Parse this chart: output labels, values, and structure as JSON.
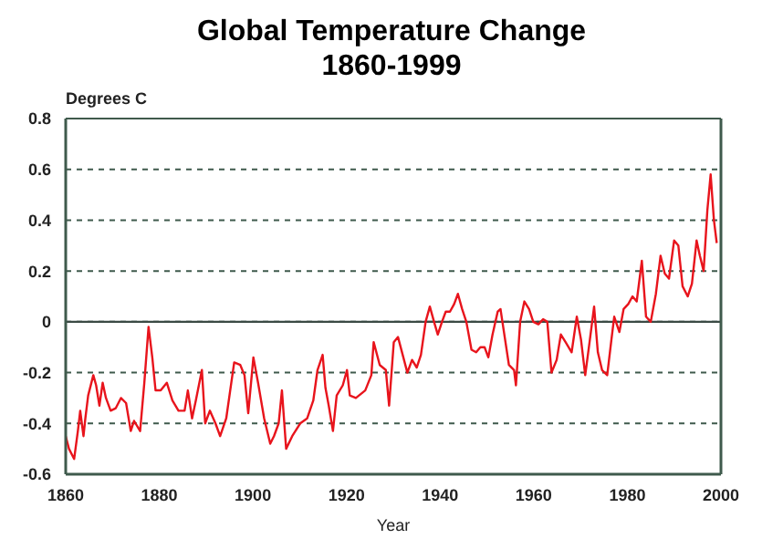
{
  "chart_data": {
    "type": "line",
    "title": "Global Temperature Change",
    "subtitle": "1860-1999",
    "ylabel": "Degrees C",
    "xlabel": "Year",
    "xlim": [
      1860,
      2000
    ],
    "xticks": [
      1860,
      1880,
      1900,
      1920,
      1940,
      1960,
      1980,
      2000
    ],
    "ylim": [
      -0.6,
      0.8
    ],
    "yticks": [
      -0.6,
      -0.4,
      -0.2,
      0,
      0.2,
      0.4,
      0.6,
      0.8
    ],
    "grid": "y",
    "marker": "none",
    "line_style": "solid",
    "ref_lines": [
      {
        "axis": "y",
        "value": 0,
        "color": "#3a4a44"
      }
    ],
    "series": [
      {
        "color": "#e8141c",
        "x": [
          1860.0,
          1860.7,
          1861.8,
          1862.6,
          1863.1,
          1863.8,
          1864.2,
          1864.8,
          1865.9,
          1866.5,
          1867.2,
          1867.9,
          1868.6,
          1869.6,
          1870.7,
          1871.8,
          1872.9,
          1873.9,
          1874.6,
          1875.9,
          1876.8,
          1877.7,
          1878.5,
          1879.2,
          1880.3,
          1881.6,
          1882.8,
          1884.1,
          1885.4,
          1886.1,
          1887,
          1887.8,
          1889.1,
          1889.8,
          1890.8,
          1892,
          1893,
          1894.3,
          1896,
          1897.3,
          1898.2,
          1899,
          1900.1,
          1901.1,
          1902.4,
          1903.7,
          1904.5,
          1905.5,
          1906.2,
          1907.1,
          1908.4,
          1910.1,
          1911.6,
          1912.9,
          1913.8,
          1914.9,
          1915.5,
          1916.2,
          1917.1,
          1917.9,
          1919.2,
          1920.1,
          1920.7,
          1922,
          1924,
          1925.3,
          1925.8,
          1927.1,
          1928.4,
          1929.1,
          1930.1,
          1931,
          1932,
          1933,
          1934,
          1935,
          1935.9,
          1936.9,
          1937.8,
          1938.7,
          1939.5,
          1940.4,
          1941.2,
          1942.1,
          1943,
          1943.8,
          1944.7,
          1945.6,
          1946.7,
          1947.7,
          1948.6,
          1949.5,
          1950.3,
          1951.2,
          1952.3,
          1952.9,
          1953.8,
          1954.7,
          1955.8,
          1956.2,
          1957.1,
          1958,
          1959,
          1959.9,
          1961,
          1962,
          1962.9,
          1963.8,
          1964.9,
          1965.8,
          1966.8,
          1968.1,
          1969.2,
          1970.1,
          1971,
          1972,
          1972.9,
          1973.7,
          1974.6,
          1975.7,
          1976.6,
          1977.2,
          1978.3,
          1979.2,
          1980.2,
          1981.1,
          1982,
          1983.1,
          1984,
          1985,
          1986.1,
          1987.1,
          1988,
          1988.9,
          1990,
          1990.9,
          1991.8,
          1992.9,
          1993.8,
          1994.8,
          1995.5,
          1996.3,
          1997.1,
          1997.8,
          1998.5,
          1999.1
        ],
        "values": [
          -0.45,
          -0.5,
          -0.54,
          -0.43,
          -0.35,
          -0.45,
          -0.38,
          -0.29,
          -0.21,
          -0.25,
          -0.33,
          -0.24,
          -0.3,
          -0.35,
          -0.34,
          -0.3,
          -0.32,
          -0.43,
          -0.39,
          -0.43,
          -0.24,
          -0.02,
          -0.14,
          -0.27,
          -0.27,
          -0.24,
          -0.31,
          -0.35,
          -0.35,
          -0.27,
          -0.38,
          -0.31,
          -0.19,
          -0.4,
          -0.35,
          -0.4,
          -0.45,
          -0.38,
          -0.16,
          -0.17,
          -0.21,
          -0.36,
          -0.14,
          -0.24,
          -0.38,
          -0.48,
          -0.45,
          -0.4,
          -0.27,
          -0.5,
          -0.45,
          -0.4,
          -0.38,
          -0.31,
          -0.19,
          -0.13,
          -0.26,
          -0.33,
          -0.43,
          -0.29,
          -0.25,
          -0.19,
          -0.29,
          -0.3,
          -0.27,
          -0.21,
          -0.08,
          -0.17,
          -0.19,
          -0.33,
          -0.08,
          -0.06,
          -0.13,
          -0.2,
          -0.15,
          -0.18,
          -0.13,
          0,
          0.06,
          0,
          -0.05,
          0,
          0.04,
          0.04,
          0.07,
          0.11,
          0.05,
          0,
          -0.11,
          -0.12,
          -0.1,
          -0.1,
          -0.14,
          -0.05,
          0.04,
          0.05,
          -0.06,
          -0.17,
          -0.19,
          -0.25,
          0,
          0.08,
          0.05,
          0,
          -0.01,
          0.01,
          0,
          -0.2,
          -0.15,
          -0.05,
          -0.08,
          -0.12,
          0.02,
          -0.07,
          -0.21,
          -0.07,
          0.06,
          -0.12,
          -0.19,
          -0.21,
          -0.07,
          0.02,
          -0.04,
          0.05,
          0.07,
          0.1,
          0.08,
          0.24,
          0.02,
          0,
          0.11,
          0.26,
          0.19,
          0.17,
          0.32,
          0.3,
          0.14,
          0.1,
          0.15,
          0.32,
          0.26,
          0.2,
          0.44,
          0.58,
          0.4,
          0.31
        ]
      }
    ]
  }
}
